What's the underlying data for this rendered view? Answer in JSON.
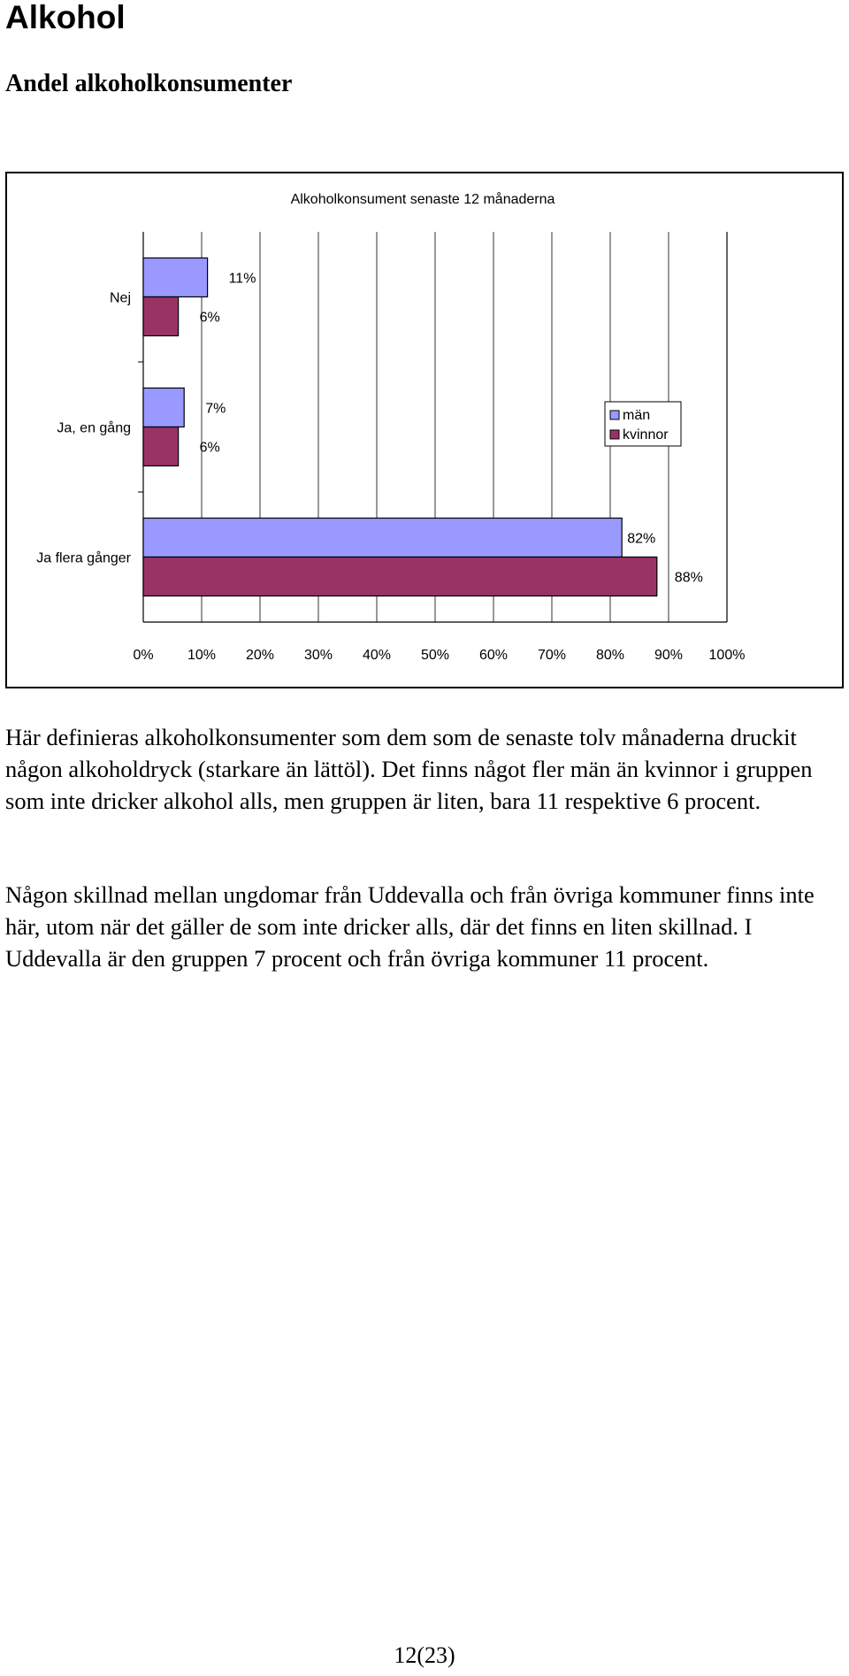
{
  "page": {
    "heading": "Alkohol",
    "section_heading": "Andel alkoholkonsumenter",
    "paragraphs": [
      "Här definieras alkoholkonsumenter som dem som de senaste tolv månaderna druckit någon alkoholdryck (starkare än lättöl). Det finns något fler män än kvinnor i gruppen som inte dricker alkohol alls, men gruppen är liten, bara 11 respektive 6 procent.",
      "Någon skillnad mellan ungdomar från Uddevalla och från övriga kommuner finns inte här, utom när det gäller de som inte dricker alls, där det finns en liten skillnad. I Uddevalla är den gruppen 7 procent och från övriga kommuner 11 procent."
    ],
    "page_number": "12(23)"
  },
  "chart_data": {
    "type": "bar",
    "orientation": "horizontal",
    "title": "Alkoholkonsument senaste 12 månaderna",
    "categories": [
      "Nej",
      "Ja, en gång",
      "Ja flera gånger"
    ],
    "series": [
      {
        "name": "män",
        "values": [
          11,
          7,
          82
        ],
        "labels": [
          "11%",
          "7%",
          "82%"
        ],
        "color": "#9999ff"
      },
      {
        "name": "kvinnor",
        "values": [
          6,
          6,
          88
        ],
        "labels": [
          "6%",
          "6%",
          "88%"
        ],
        "color": "#993366"
      }
    ],
    "xlim": [
      0,
      100
    ],
    "x_ticks": [
      "0%",
      "10%",
      "20%",
      "30%",
      "40%",
      "50%",
      "60%",
      "70%",
      "80%",
      "90%",
      "100%"
    ],
    "grid": "vertical",
    "legend_position": "right"
  }
}
